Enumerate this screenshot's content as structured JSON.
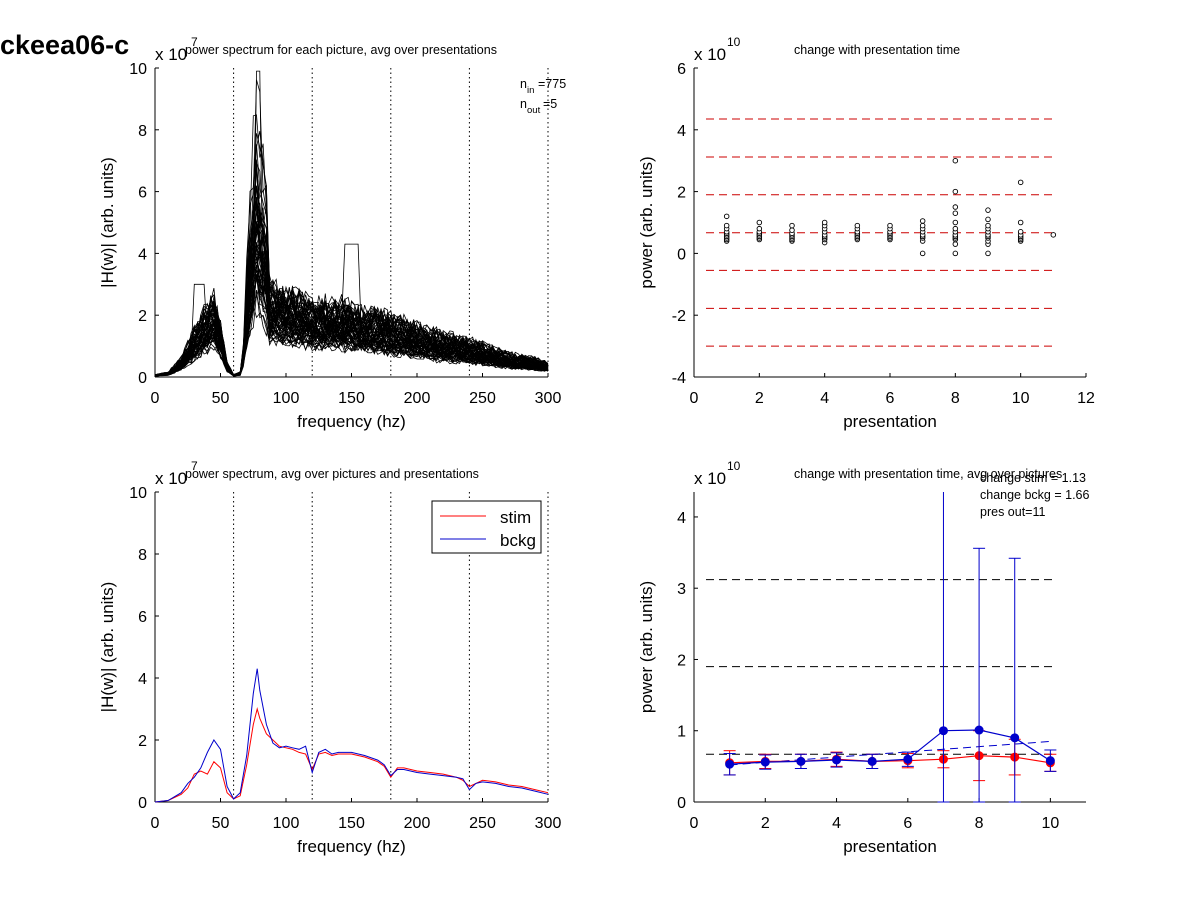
{
  "figure_title": "ckeea06-c",
  "chart_data": [
    {
      "id": "top-left",
      "type": "line",
      "title": "power spectrum for each picture, avg over presentations",
      "xlabel": "frequency (hz)",
      "ylabel": "|H(w)| (arb. units)",
      "y_exponent_label": "x 10",
      "y_exponent": "7",
      "xlim": [
        0,
        300
      ],
      "ylim": [
        0,
        10
      ],
      "xticks": [
        0,
        50,
        100,
        150,
        200,
        250,
        300
      ],
      "yticks": [
        0,
        2,
        4,
        6,
        8,
        10
      ],
      "vlines": [
        60,
        120,
        180,
        240,
        300
      ],
      "annotations": [
        {
          "base": "n",
          "sub": "in",
          "value": "=775"
        },
        {
          "base": "n",
          "sub": "out",
          "value": "=5"
        }
      ],
      "series_count_approx": 60,
      "representative_series": {
        "x": [
          0,
          10,
          20,
          30,
          40,
          45,
          50,
          55,
          60,
          65,
          70,
          75,
          78,
          80,
          85,
          90,
          100,
          110,
          120,
          130,
          140,
          150,
          160,
          170,
          180,
          190,
          200,
          210,
          220,
          230,
          240,
          250,
          260,
          270,
          280,
          290,
          300
        ],
        "y": [
          0.05,
          0.1,
          0.4,
          1.0,
          1.5,
          1.7,
          1.1,
          0.3,
          0.05,
          0.1,
          1.2,
          2.4,
          3.0,
          2.6,
          2.1,
          1.9,
          1.8,
          1.7,
          1.6,
          1.6,
          1.6,
          1.5,
          1.4,
          1.4,
          1.3,
          1.2,
          1.1,
          1.0,
          0.9,
          0.85,
          0.8,
          0.7,
          0.6,
          0.5,
          0.45,
          0.4,
          0.3
        ]
      },
      "peak": {
        "x": 78,
        "y": 9.9
      },
      "color": "#000000"
    },
    {
      "id": "top-right",
      "type": "scatter",
      "title": "change with presentation time",
      "xlabel": "presentation",
      "ylabel": "power (arb. units)",
      "y_exponent_label": "x 10",
      "y_exponent": "10",
      "xlim": [
        0,
        12
      ],
      "ylim": [
        -4,
        6
      ],
      "xticks": [
        0,
        2,
        4,
        6,
        8,
        10,
        12
      ],
      "yticks": [
        -4,
        -2,
        0,
        2,
        4,
        6
      ],
      "hlines": [
        4.35,
        3.12,
        1.9,
        0.67,
        -0.55,
        -1.78,
        -3.0
      ],
      "hline_color": "#cc0000",
      "points": [
        {
          "x": 1,
          "y": [
            0.4,
            0.45,
            0.5,
            0.55,
            0.6,
            0.65,
            0.7,
            0.8,
            0.9,
            1.2
          ]
        },
        {
          "x": 2,
          "y": [
            0.45,
            0.5,
            0.55,
            0.6,
            0.65,
            0.7,
            0.8,
            1.0
          ]
        },
        {
          "x": 3,
          "y": [
            0.4,
            0.45,
            0.5,
            0.55,
            0.6,
            0.65,
            0.75,
            0.9
          ]
        },
        {
          "x": 4,
          "y": [
            0.35,
            0.45,
            0.5,
            0.55,
            0.6,
            0.7,
            0.8,
            0.9,
            1.0
          ]
        },
        {
          "x": 5,
          "y": [
            0.45,
            0.5,
            0.55,
            0.6,
            0.65,
            0.7,
            0.8,
            0.9
          ]
        },
        {
          "x": 6,
          "y": [
            0.45,
            0.5,
            0.55,
            0.6,
            0.65,
            0.7,
            0.8,
            0.9
          ]
        },
        {
          "x": 7,
          "y": [
            0.0,
            0.4,
            0.5,
            0.55,
            0.6,
            0.7,
            0.8,
            0.9,
            1.05
          ]
        },
        {
          "x": 8,
          "y": [
            0.0,
            0.3,
            0.45,
            0.5,
            0.55,
            0.6,
            0.7,
            0.8,
            1.0,
            1.3,
            1.5,
            2.0,
            3.0
          ]
        },
        {
          "x": 9,
          "y": [
            0.0,
            0.3,
            0.4,
            0.5,
            0.55,
            0.6,
            0.7,
            0.8,
            0.9,
            1.1,
            1.4
          ]
        },
        {
          "x": 10,
          "y": [
            0.4,
            0.45,
            0.5,
            0.55,
            0.6,
            0.7,
            1.0,
            2.3
          ]
        },
        {
          "x": 11,
          "y": [
            0.6
          ]
        }
      ]
    },
    {
      "id": "bottom-left",
      "type": "line",
      "title": "power spectrum, avg over pictures and presentations",
      "xlabel": "frequency (hz)",
      "ylabel": "|H(w)| (arb. units)",
      "y_exponent_label": "x 10",
      "y_exponent": "7",
      "xlim": [
        0,
        300
      ],
      "ylim": [
        0,
        10
      ],
      "xticks": [
        0,
        50,
        100,
        150,
        200,
        250,
        300
      ],
      "yticks": [
        0,
        2,
        4,
        6,
        8,
        10
      ],
      "vlines": [
        60,
        120,
        180,
        240,
        300
      ],
      "legend": {
        "position": "top-right",
        "entries": [
          "stim",
          "bckg"
        ]
      },
      "x": [
        0,
        10,
        20,
        25,
        30,
        35,
        40,
        45,
        50,
        55,
        60,
        65,
        70,
        75,
        78,
        80,
        85,
        90,
        95,
        100,
        105,
        110,
        115,
        120,
        125,
        130,
        135,
        140,
        150,
        160,
        170,
        175,
        180,
        185,
        190,
        200,
        210,
        220,
        230,
        235,
        240,
        245,
        250,
        260,
        270,
        280,
        290,
        300
      ],
      "series": [
        {
          "name": "stim",
          "color": "#ff0000",
          "values": [
            0.0,
            0.05,
            0.25,
            0.45,
            0.9,
            1.0,
            0.9,
            1.3,
            1.1,
            0.3,
            0.1,
            0.2,
            1.2,
            2.5,
            3.0,
            2.7,
            2.2,
            2.0,
            1.8,
            1.75,
            1.7,
            1.6,
            1.55,
            1.05,
            1.55,
            1.6,
            1.5,
            1.55,
            1.55,
            1.45,
            1.3,
            1.15,
            0.8,
            1.1,
            1.1,
            1.0,
            0.95,
            0.9,
            0.8,
            0.7,
            0.5,
            0.6,
            0.7,
            0.65,
            0.55,
            0.5,
            0.4,
            0.3
          ]
        },
        {
          "name": "bckg",
          "color": "#0000cc",
          "values": [
            0.0,
            0.05,
            0.3,
            0.6,
            0.8,
            1.1,
            1.6,
            2.0,
            1.7,
            0.5,
            0.1,
            0.3,
            1.5,
            3.5,
            4.3,
            3.6,
            2.5,
            1.9,
            1.75,
            1.8,
            1.75,
            1.7,
            1.8,
            0.95,
            1.6,
            1.7,
            1.55,
            1.6,
            1.6,
            1.5,
            1.35,
            1.2,
            0.85,
            1.05,
            1.05,
            0.95,
            0.9,
            0.85,
            0.8,
            0.75,
            0.4,
            0.6,
            0.65,
            0.6,
            0.5,
            0.45,
            0.35,
            0.25
          ]
        }
      ]
    },
    {
      "id": "bottom-right",
      "type": "line",
      "title": "change with presentation time, avg over pictures",
      "xlabel": "presentation",
      "ylabel": "power (arb. units)",
      "y_exponent_label": "x 10",
      "y_exponent": "10",
      "xlim": [
        0,
        11
      ],
      "ylim": [
        0,
        4.35
      ],
      "xticks": [
        0,
        2,
        4,
        6,
        8,
        10
      ],
      "yticks": [
        0,
        1,
        2,
        3,
        4
      ],
      "hlines": [
        3.12,
        1.9,
        0.67
      ],
      "hline_color": "#000000",
      "annotations": [
        "change stim = 1.13",
        "change bckg = 1.66",
        "pres out=11"
      ],
      "x": [
        1,
        2,
        3,
        4,
        5,
        6,
        7,
        8,
        9,
        10
      ],
      "series": [
        {
          "name": "stim",
          "color": "#ff0000",
          "values": [
            0.55,
            0.57,
            0.57,
            0.6,
            0.57,
            0.58,
            0.6,
            0.65,
            0.63,
            0.55
          ],
          "err": [
            0.17,
            0.1,
            0.1,
            0.1,
            0.1,
            0.1,
            0.12,
            0.35,
            0.25,
            0.12
          ]
        },
        {
          "name": "bckg",
          "color": "#0000cc",
          "values": [
            0.53,
            0.56,
            0.57,
            0.59,
            0.57,
            0.6,
            1.0,
            1.01,
            0.9,
            0.58
          ],
          "err": [
            0.15,
            0.1,
            0.1,
            0.1,
            0.1,
            0.1,
            3.5,
            2.55,
            2.52,
            0.15
          ]
        }
      ],
      "trend_line": {
        "from": [
          1,
          0.52
        ],
        "to": [
          10,
          0.85
        ],
        "style": "dashed",
        "color": "#0000cc"
      }
    }
  ]
}
